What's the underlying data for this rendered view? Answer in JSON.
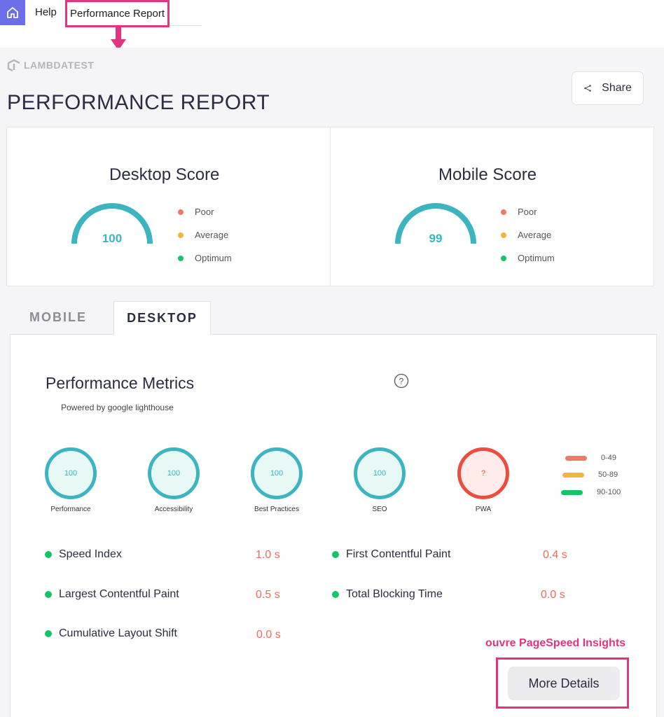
{
  "nav": {
    "help_label": "Help",
    "active_label": "Performance Report"
  },
  "brand": {
    "logo_text": "LAMBDATEST"
  },
  "page": {
    "title": "PERFORMANCE REPORT",
    "share_label": "Share"
  },
  "scores": {
    "desktop": {
      "title": "Desktop Score",
      "value": "100"
    },
    "mobile": {
      "title": "Mobile Score",
      "value": "99"
    },
    "legend": [
      {
        "label": "Poor",
        "color": "#f07a6a"
      },
      {
        "label": "Average",
        "color": "#f3b53b"
      },
      {
        "label": "Optimum",
        "color": "#15c46a"
      }
    ]
  },
  "tabs": {
    "mobile": "MOBILE",
    "desktop": "DESKTOP"
  },
  "metrics": {
    "title": "Performance Metrics",
    "powered_by": "Powered by google lighthouse",
    "categories": [
      {
        "label": "Performance",
        "value": "100",
        "status": "good"
      },
      {
        "label": "Accessibility",
        "value": "100",
        "status": "good"
      },
      {
        "label": "Best Practices",
        "value": "100",
        "status": "good"
      },
      {
        "label": "SEO",
        "value": "100",
        "status": "good"
      },
      {
        "label": "PWA",
        "value": "?",
        "status": "bad"
      }
    ],
    "ranges": [
      {
        "label": "0-49",
        "color": "#f07a6a"
      },
      {
        "label": "50-89",
        "color": "#f3b53b"
      },
      {
        "label": "90-100",
        "color": "#15c46a"
      }
    ],
    "items": [
      {
        "label": "Speed Index",
        "value": "1.0 s"
      },
      {
        "label": "First Contentful Paint",
        "value": "0.4 s"
      },
      {
        "label": "Largest Contentful Paint",
        "value": "0.5 s"
      },
      {
        "label": "Total Blocking Time",
        "value": "0.0 s"
      },
      {
        "label": "Cumulative Layout Shift",
        "value": "0.0 s"
      }
    ]
  },
  "annotation": {
    "note": "ouvre PageSpeed Insights"
  },
  "actions": {
    "more_details": "More Details"
  }
}
